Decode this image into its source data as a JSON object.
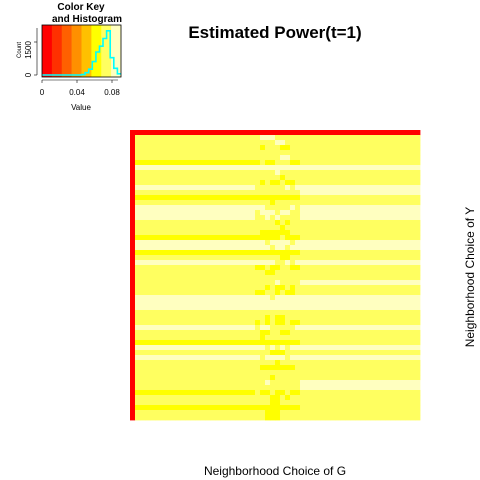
{
  "chart_data": {
    "type": "heatmap",
    "title": "Estimated Power(t=1)",
    "xlabel": "Neighborhood Choice of G",
    "ylabel": "Neighborhood Choice of Y",
    "color_key": {
      "title_line1": "Color Key",
      "title_line2": "and Histogram",
      "xlabel": "Value",
      "ylabel": "Count",
      "x_ticks": [
        "0",
        "0.04",
        "0.08"
      ],
      "y_ticks": [
        "0",
        "1500"
      ],
      "value_range": [
        0,
        0.09
      ],
      "colors": [
        "#ff0000",
        "#ff3000",
        "#ff6000",
        "#ff9000",
        "#ffc000",
        "#ffff00",
        "#ffff60",
        "#ffffc0"
      ],
      "histogram_counts": [
        0,
        0,
        0,
        0,
        0,
        0,
        0,
        0,
        0,
        0,
        0,
        20,
        120,
        300,
        700,
        1200,
        1500,
        1900,
        2300,
        900,
        350,
        60
      ],
      "histogram_color": "#00ffff"
    },
    "matrix_value_range": [
      0.05,
      0.09
    ],
    "left_edge_value": 0.0,
    "top_edge_value": 0.0,
    "n_rows": 58,
    "n_cols": 58
  }
}
